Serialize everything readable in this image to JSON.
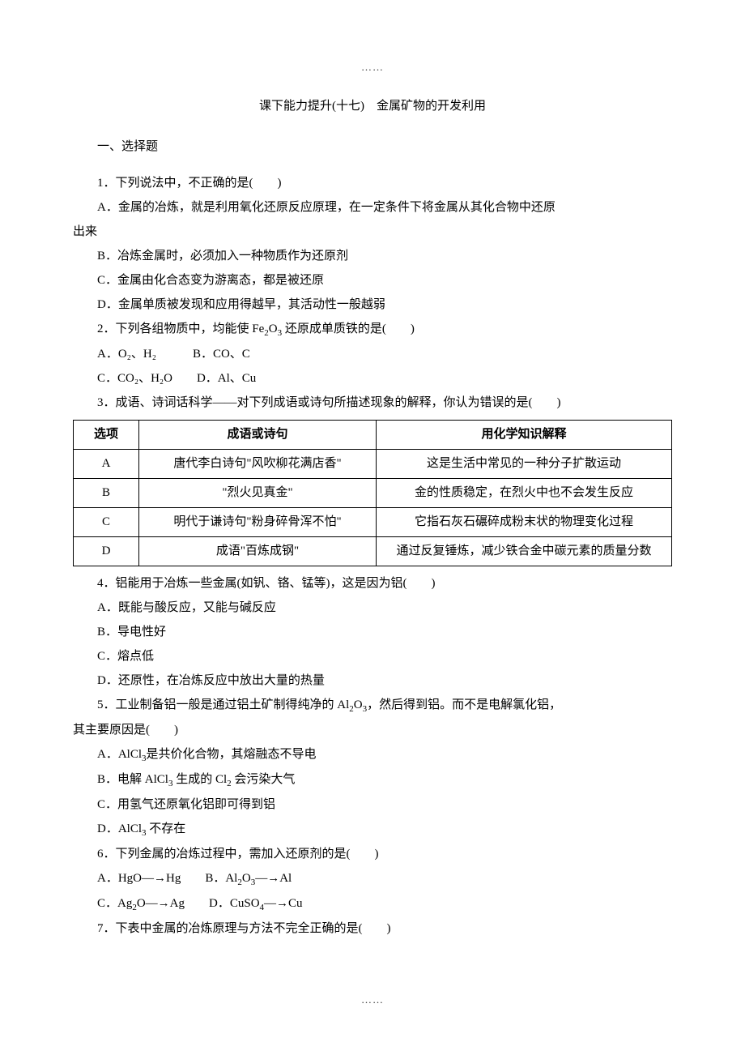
{
  "dots": "……",
  "title": "课下能力提升(十七)　金属矿物的开发利用",
  "section1": "一、选择题",
  "q1": {
    "stem": "1．下列说法中，不正确的是(　　)",
    "a": "A．金属的冶炼，就是利用氧化还原反应原理，在一定条件下将金属从其化合物中还原",
    "a2": "出来",
    "b": "B．冶炼金属时，必须加入一种物质作为还原剂",
    "c": "C．金属由化合态变为游离态，都是被还原",
    "d": "D．金属单质被发现和应用得越早，其活动性一般越弱"
  },
  "q2": {
    "stem_pre": "2．下列各组物质中，均能使 Fe",
    "stem_sub1": "2",
    "stem_mid": "O",
    "stem_sub2": "3",
    "stem_post": " 还原成单质铁的是(　　)",
    "a": "A．O₂、H₂　　　B．CO、C",
    "c": "C．CO₂、H₂O　　D．Al、Cu"
  },
  "q3": {
    "stem": "3．成语、诗词话科学——对下列成语或诗句所描述现象的解释，你认为错误的是(　　)",
    "headers": {
      "col1": "选项",
      "col2": "成语或诗句",
      "col3": "用化学知识解释"
    },
    "rows": [
      {
        "opt": "A",
        "idiom": "唐代李白诗句\"风吹柳花满店香\"",
        "explain": "这是生活中常见的一种分子扩散运动"
      },
      {
        "opt": "B",
        "idiom": "\"烈火见真金\"",
        "explain": "金的性质稳定，在烈火中也不会发生反应"
      },
      {
        "opt": "C",
        "idiom": "明代于谦诗句\"粉身碎骨浑不怕\"",
        "explain": "它指石灰石碾碎成粉末状的物理变化过程"
      },
      {
        "opt": "D",
        "idiom": "成语\"百炼成钢\"",
        "explain": "通过反复锤炼，减少铁合金中碳元素的质量分数"
      }
    ]
  },
  "q4": {
    "stem": "4．铝能用于冶炼一些金属(如钒、铬、锰等)，这是因为铝(　　)",
    "a": "A．既能与酸反应，又能与碱反应",
    "b": "B．导电性好",
    "c": "C．熔点低",
    "d": "D．还原性，在冶炼反应中放出大量的热量"
  },
  "q5": {
    "stem_pre": "5．工业制备铝一般是通过铝土矿制得纯净的 Al",
    "stem_sub1": "2",
    "stem_mid": "O",
    "stem_sub2": "3",
    "stem_post": "，然后得到铝。而不是电解氯化铝，",
    "stem_line2": "其主要原因是(　　)",
    "a_pre": "A．AlCl",
    "a_sub": "3",
    "a_post": "是共价化合物，其熔融态不导电",
    "b_pre": "B．电解 AlCl",
    "b_sub1": "3",
    "b_mid": " 生成的 Cl",
    "b_sub2": "2",
    "b_post": " 会污染大气",
    "c": "C．用氢气还原氧化铝即可得到铝",
    "d_pre": "D．AlCl",
    "d_sub": "3",
    "d_post": " 不存在"
  },
  "q6": {
    "stem": "6．下列金属的冶炼过程中，需加入还原剂的是(　　)",
    "a_pre": "A．HgO―→Hg　　B．Al",
    "a_sub1": "2",
    "a_mid": "O",
    "a_sub2": "3",
    "a_post": "―→Al",
    "c_pre": "C．Ag",
    "c_sub1": "2",
    "c_mid": "O―→Ag　　D．CuSO",
    "c_sub2": "4",
    "c_post": "―→Cu"
  },
  "q7": {
    "stem": "7．下表中金属的冶炼原理与方法不完全正确的是(　　)"
  }
}
